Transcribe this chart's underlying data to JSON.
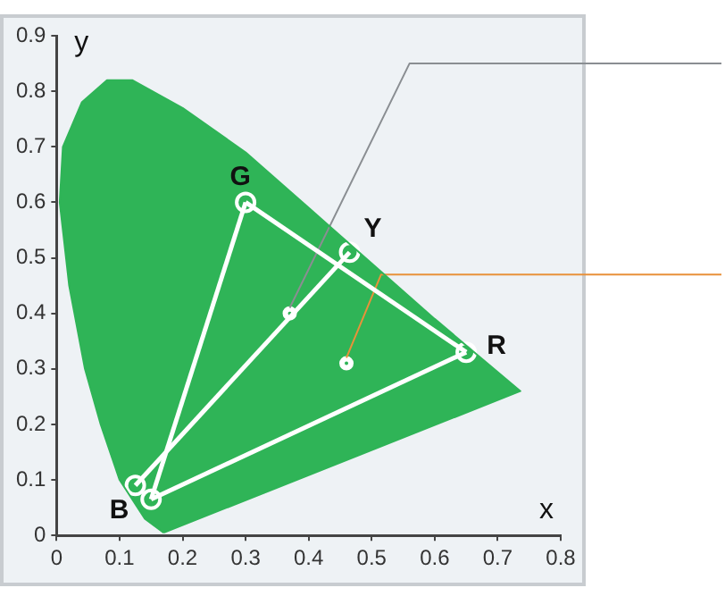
{
  "chart_data": {
    "type": "scatter",
    "xlabel": "x",
    "ylabel": "y",
    "xlim": [
      0,
      0.8
    ],
    "ylim": [
      0,
      0.9
    ],
    "xticks": [
      0,
      0.1,
      0.2,
      0.3,
      0.4,
      0.5,
      0.6,
      0.7,
      0.8
    ],
    "yticks": [
      0,
      0.1,
      0.2,
      0.3,
      0.4,
      0.5,
      0.6,
      0.7,
      0.8,
      0.9
    ],
    "grid": false,
    "legend": false,
    "series": [
      {
        "type": "area",
        "color": "#2fb457",
        "x": [
          0.17,
          0.14,
          0.1,
          0.07,
          0.045,
          0.02,
          0.005,
          0.01,
          0.04,
          0.08,
          0.12,
          0.2,
          0.3,
          0.4,
          0.5,
          0.6,
          0.736,
          0.17
        ],
        "values": [
          0.005,
          0.03,
          0.1,
          0.2,
          0.3,
          0.45,
          0.6,
          0.7,
          0.78,
          0.82,
          0.82,
          0.77,
          0.69,
          0.59,
          0.49,
          0.39,
          0.26,
          0.005
        ],
        "marker": "none"
      },
      {
        "type": "line",
        "color": "#ffffff",
        "x": [
          0.3,
          0.65
        ],
        "values": [
          0.6,
          0.33
        ],
        "marker": "none"
      },
      {
        "type": "line",
        "color": "#ffffff",
        "x": [
          0.15,
          0.3
        ],
        "values": [
          0.065,
          0.6
        ],
        "marker": "none"
      },
      {
        "type": "line",
        "color": "#ffffff",
        "x": [
          0.15,
          0.65
        ],
        "values": [
          0.065,
          0.33
        ],
        "marker": "none"
      },
      {
        "type": "line",
        "color": "#ffffff",
        "x": [
          0.125,
          0.465
        ],
        "values": [
          0.09,
          0.51
        ],
        "marker": "none"
      },
      {
        "type": "line",
        "color": "#8a8e92",
        "x": [
          0.37,
          0.56,
          0.8
        ],
        "values": [
          0.41,
          0.85,
          0.85
        ],
        "marker": "none"
      },
      {
        "type": "line",
        "color": "#e8913a",
        "x": [
          0.46,
          0.515,
          0.8
        ],
        "values": [
          0.32,
          0.47,
          0.47
        ],
        "marker": "none"
      },
      {
        "type": "scatter",
        "color": "#ffffff",
        "x": [
          0.37,
          0.46
        ],
        "values": [
          0.4,
          0.31
        ],
        "marker": "circle"
      },
      {
        "name": "G",
        "type": "scatter",
        "color": "#ffffff",
        "x": [
          0.3
        ],
        "values": [
          0.6
        ],
        "marker": "circle"
      },
      {
        "name": "Y",
        "type": "scatter",
        "color": "#ffffff",
        "x": [
          0.465
        ],
        "values": [
          0.51
        ],
        "marker": "circle"
      },
      {
        "name": "R",
        "type": "scatter",
        "color": "#ffffff",
        "x": [
          0.65
        ],
        "values": [
          0.33
        ],
        "marker": "circle"
      },
      {
        "name": "B",
        "type": "scatter",
        "color": "#ffffff",
        "x": [
          0.125,
          0.15
        ],
        "values": [
          0.09,
          0.065
        ],
        "marker": "circle"
      }
    ]
  }
}
